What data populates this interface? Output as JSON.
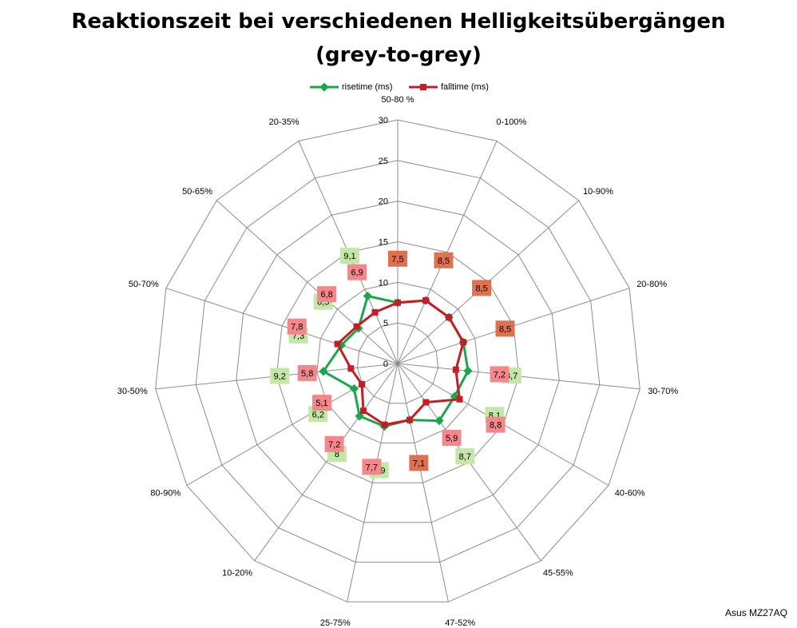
{
  "chart_data": {
    "type": "radar",
    "title": "Reaktionszeit bei verschiedenen Helligkeitsübergängen",
    "subtitle": "(grey-to-grey)",
    "categories": [
      "50-80 %",
      "0-100%",
      "10-90%",
      "20-80%",
      "30-70%",
      "40-60%",
      "45-55%",
      "47-52%",
      "25-75%",
      "10-20%",
      "80-90%",
      "30-50%",
      "50-70%",
      "50-65%",
      "20-35%"
    ],
    "tick_labels": [
      "0",
      "5",
      "10",
      "15",
      "20",
      "25",
      "30"
    ],
    "rlim": [
      0,
      30
    ],
    "legend_position": "top",
    "series": [
      {
        "name": "risetime (ms)",
        "color": "#1aa64a",
        "label_bg": "#c4e6a6",
        "values": [
          7.5,
          8.5,
          8.5,
          8.5,
          8.7,
          8.1,
          8.7,
          7.1,
          7.9,
          8.0,
          6.2,
          9.2,
          7.3,
          6.5,
          9.1
        ],
        "labels": [
          "7,5",
          "8,5",
          "8,5",
          "8,5",
          "8,7",
          "8,1",
          "8,7",
          "7,1",
          "7,9",
          "8",
          "6,2",
          "9,2",
          "7,3",
          "6,5",
          "9,1"
        ]
      },
      {
        "name": "falltime (ms)",
        "color": "#c41e24",
        "label_bg": "#f4878c",
        "values": [
          7.5,
          8.5,
          8.5,
          8.5,
          7.2,
          8.8,
          5.9,
          7.1,
          7.7,
          7.2,
          5.1,
          5.8,
          7.8,
          6.8,
          6.9
        ],
        "labels": [
          "7,5",
          "8,5",
          "8,5",
          "8,5",
          "7,2",
          "8,8",
          "5,9",
          "7,1",
          "7,7",
          "7,2",
          "5,1",
          "5,8",
          "7,8",
          "6,8",
          "6,9"
        ]
      }
    ],
    "overlap_label_bg": "#e0704e",
    "footer": "Asus MZ27AQ"
  }
}
